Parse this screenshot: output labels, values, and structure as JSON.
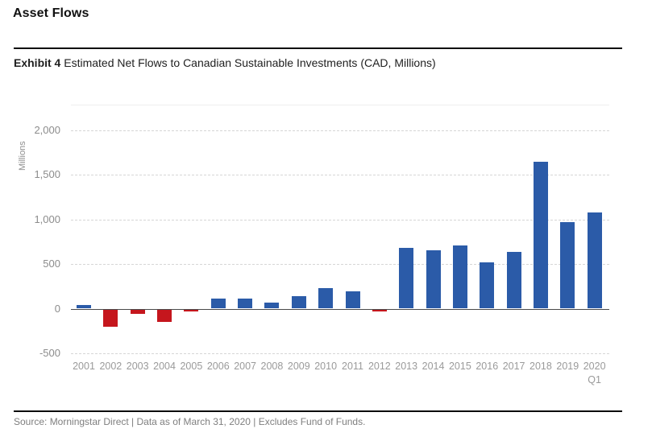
{
  "page": {
    "title": "Asset Flows",
    "exhibit_label": "Exhibit 4",
    "exhibit_title": " Estimated Net Flows to Canadian Sustainable Investments (CAD, Millions)",
    "footer": "Source: Morningstar Direct | Data as of March 31, 2020 | Excludes Fund of Funds."
  },
  "chart_data": {
    "type": "bar",
    "title": "Estimated Net Flows to Canadian Sustainable Investments (CAD, Millions)",
    "xlabel": "",
    "ylabel": "Millions",
    "ylim": [
      -500,
      2250
    ],
    "grid": "horizontal-dashed",
    "legend": "none",
    "yticks": [
      2000,
      1500,
      1000,
      500,
      0,
      -500
    ],
    "ytick_labels": [
      "2,000",
      "1,500",
      "1,000",
      "500",
      "0",
      "-500"
    ],
    "categories": [
      "2001",
      "2002",
      "2003",
      "2004",
      "2005",
      "2006",
      "2007",
      "2008",
      "2009",
      "2010",
      "2011",
      "2012",
      "2013",
      "2014",
      "2015",
      "2016",
      "2017",
      "2018",
      "2019",
      "2020"
    ],
    "last_category_subline": "Q1",
    "values": [
      40,
      -200,
      -55,
      -150,
      -35,
      110,
      115,
      70,
      140,
      230,
      195,
      -30,
      685,
      650,
      710,
      515,
      640,
      1650,
      970,
      1075
    ],
    "positive_color": "#2B5BA8",
    "negative_color": "#C5161D"
  }
}
